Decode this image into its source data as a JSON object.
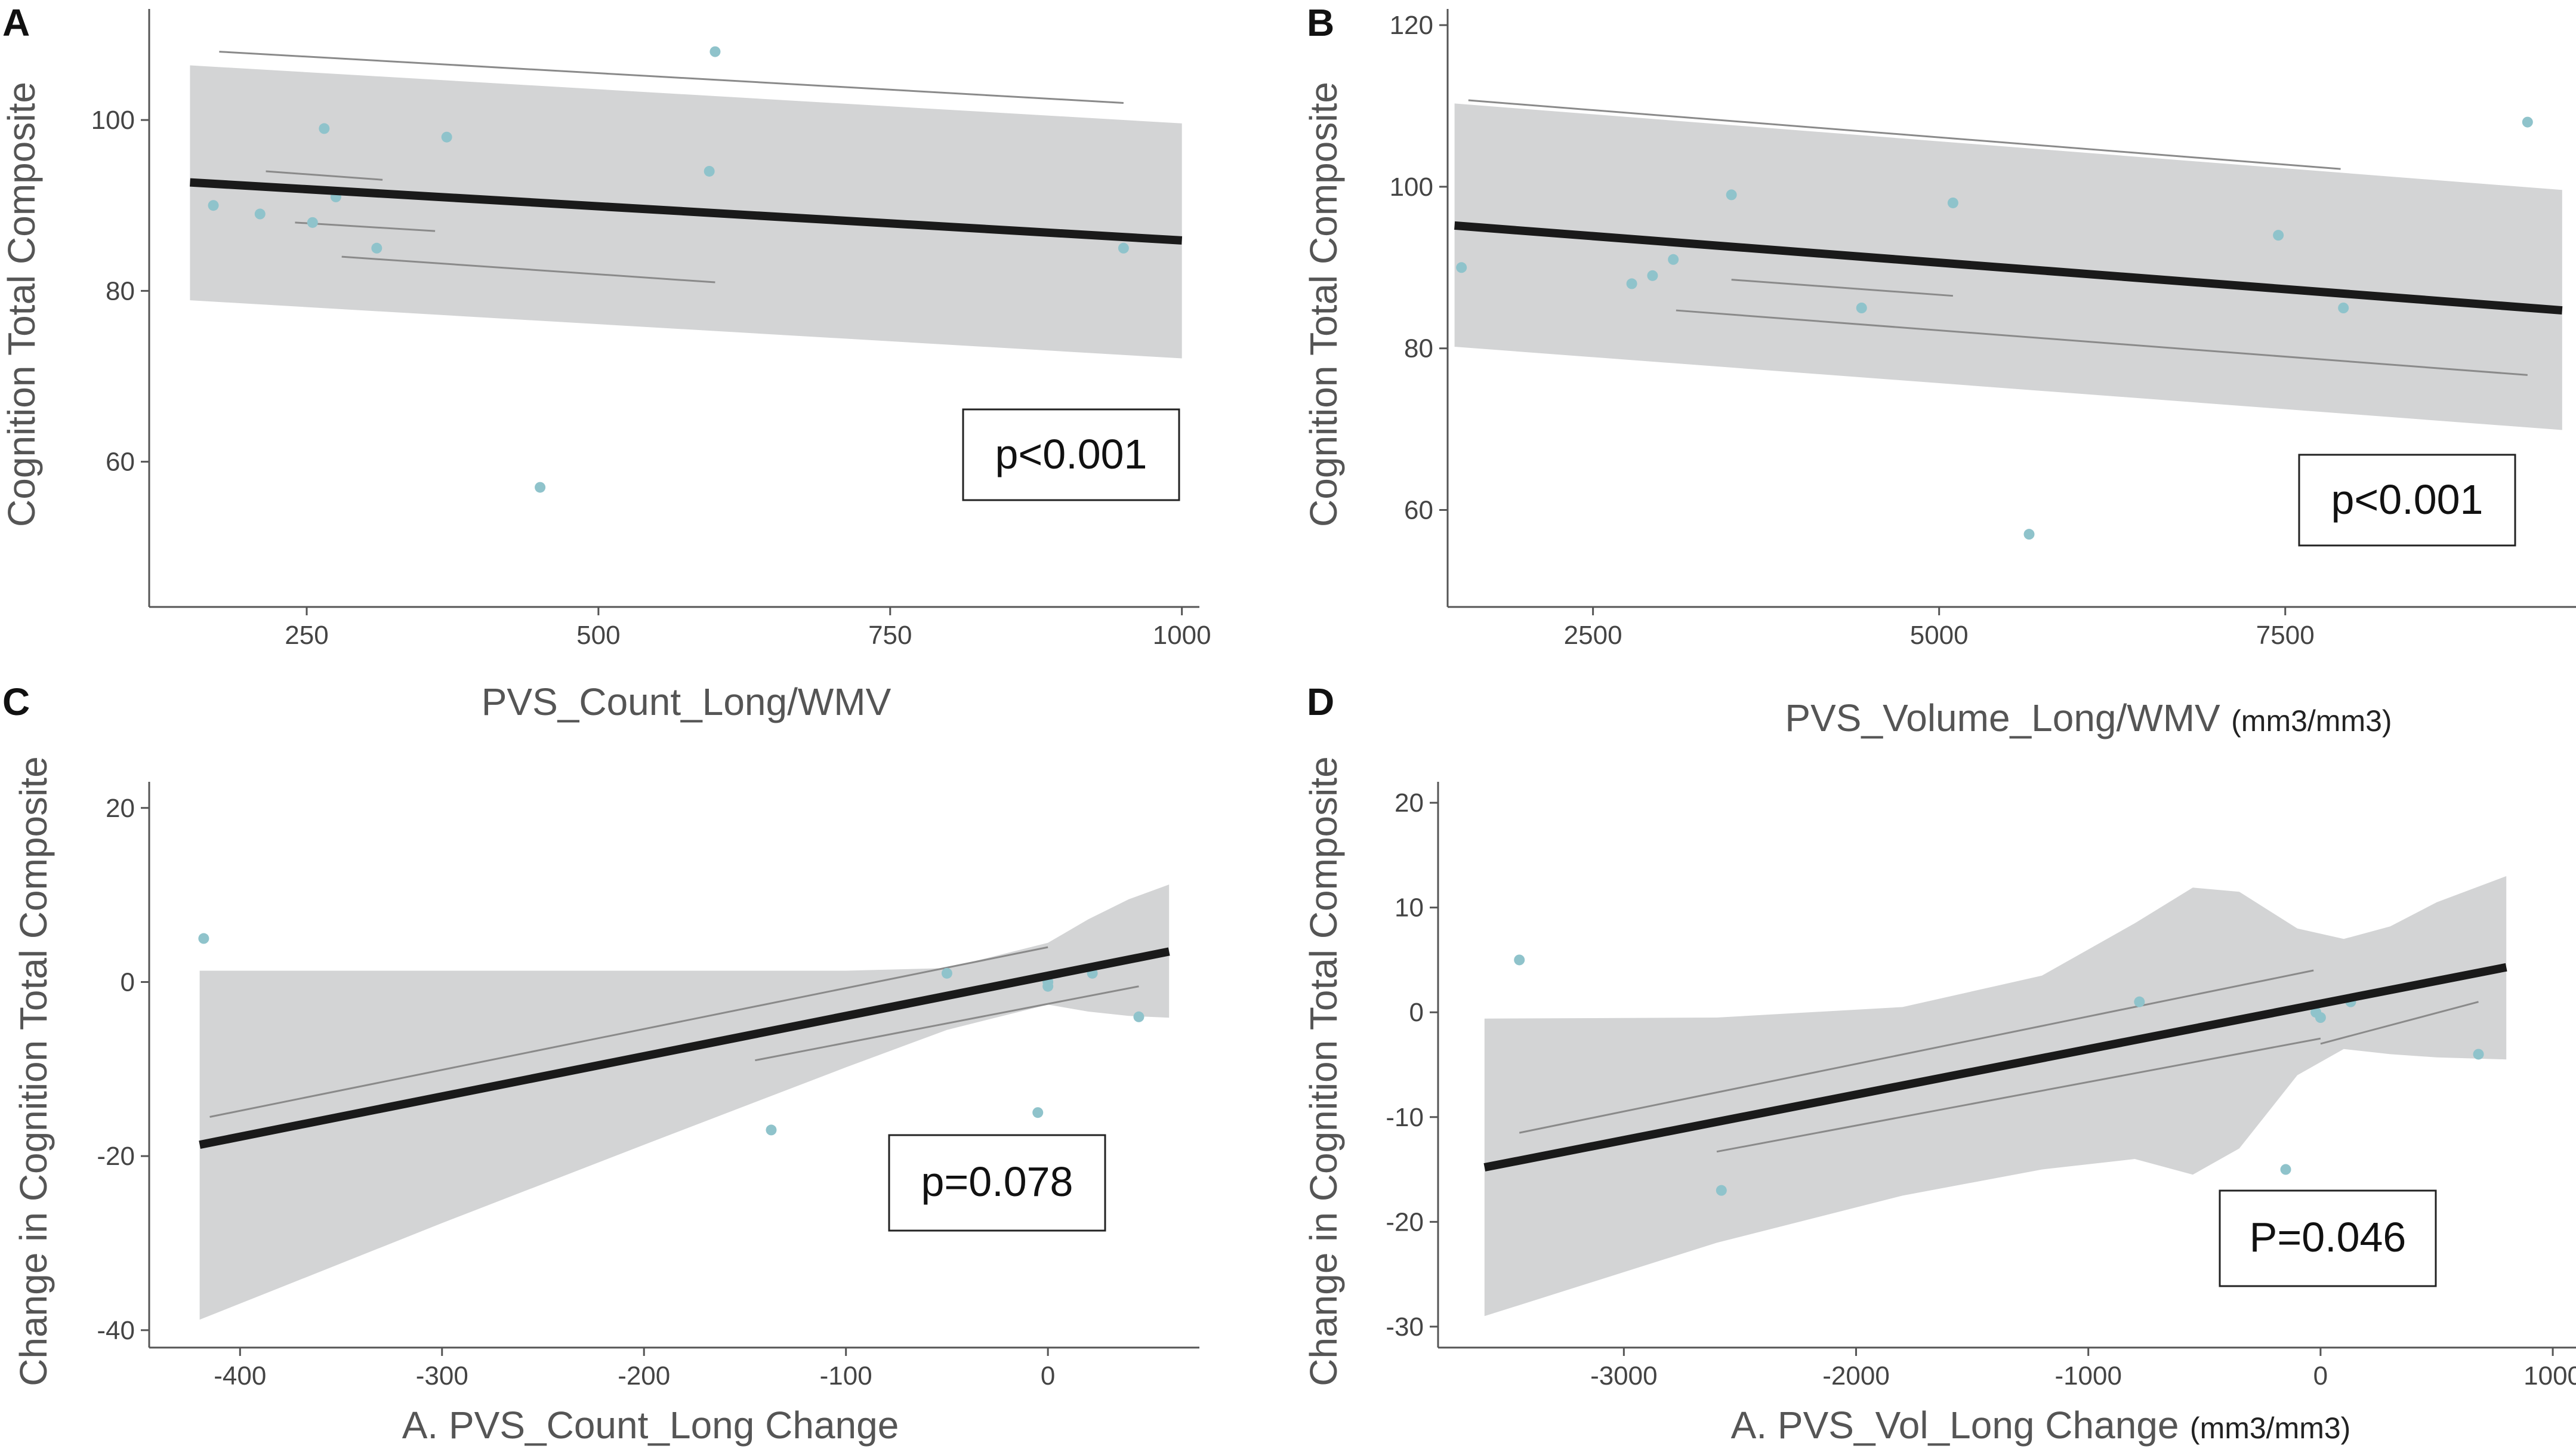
{
  "chart_data": [
    {
      "panel": "A",
      "type": "scatter",
      "xlabel": "PVS_Count_Long/WMV",
      "xunit": "",
      "ylabel": "Cognition Total Composite",
      "xlim": [
        115,
        1015
      ],
      "ylim": [
        43,
        113
      ],
      "xticks": [
        250,
        500,
        750,
        1000
      ],
      "yticks": [
        60,
        80,
        100
      ],
      "points": [
        {
          "x": 170,
          "y": 90
        },
        {
          "x": 210,
          "y": 89
        },
        {
          "x": 255,
          "y": 88
        },
        {
          "x": 265,
          "y": 99
        },
        {
          "x": 275,
          "y": 91
        },
        {
          "x": 310,
          "y": 85
        },
        {
          "x": 370,
          "y": 98
        },
        {
          "x": 450,
          "y": 57
        },
        {
          "x": 595,
          "y": 94
        },
        {
          "x": 600,
          "y": 108
        },
        {
          "x": 950,
          "y": 85
        }
      ],
      "fit": {
        "x": [
          150,
          1000
        ],
        "y": [
          92.7,
          85.9
        ]
      },
      "ci": {
        "x": [
          150,
          1000
        ],
        "upper": [
          106.4,
          99.6
        ],
        "lower": [
          78.9,
          72.1
        ]
      },
      "faint_lines": [
        {
          "x": [
            175,
            950
          ],
          "y": [
            108,
            102
          ]
        },
        {
          "x": [
            215,
            315
          ],
          "y": [
            94,
            93
          ]
        },
        {
          "x": [
            240,
            360
          ],
          "y": [
            88,
            87
          ]
        },
        {
          "x": [
            280,
            600
          ],
          "y": [
            84,
            81
          ]
        }
      ],
      "annotation": "p<0.001"
    },
    {
      "panel": "B",
      "type": "scatter",
      "xlabel": "PVS_Volume_Long/WMV",
      "xunit": "(mm3/mm3)",
      "ylabel": "Cognition Total Composite",
      "xlim": [
        1450,
        9600
      ],
      "ylim": [
        48,
        122
      ],
      "xticks": [
        2500,
        5000,
        7500
      ],
      "yticks": [
        60,
        80,
        100,
        120
      ],
      "points": [
        {
          "x": 1550,
          "y": 90
        },
        {
          "x": 2780,
          "y": 88
        },
        {
          "x": 2930,
          "y": 89
        },
        {
          "x": 3080,
          "y": 91
        },
        {
          "x": 3500,
          "y": 99
        },
        {
          "x": 4440,
          "y": 85
        },
        {
          "x": 5100,
          "y": 98
        },
        {
          "x": 5650,
          "y": 57
        },
        {
          "x": 7450,
          "y": 94
        },
        {
          "x": 7920,
          "y": 85
        },
        {
          "x": 9250,
          "y": 108
        }
      ],
      "fit": {
        "x": [
          1500,
          9500
        ],
        "y": [
          95.2,
          84.7
        ]
      },
      "ci": {
        "x": [
          1500,
          9500
        ],
        "upper": [
          110.3,
          99.6
        ],
        "lower": [
          80.2,
          69.9
        ]
      },
      "faint_lines": [
        {
          "x": [
            1600,
            7900
          ],
          "y": [
            110.7,
            102.2
          ]
        },
        {
          "x": [
            3500,
            5100
          ],
          "y": [
            88.5,
            86.5
          ]
        },
        {
          "x": [
            3100,
            9250
          ],
          "y": [
            84.7,
            76.7
          ]
        }
      ],
      "annotation": "p<0.001"
    },
    {
      "panel": "C",
      "type": "scatter",
      "xlabel": "A. PVS_Count_Long Change",
      "xunit": "",
      "ylabel": "Change in Cognition Total Composite",
      "xlim": [
        -445,
        75
      ],
      "ylim": [
        -42,
        23
      ],
      "xticks": [
        -400,
        -300,
        -200,
        -100,
        0
      ],
      "yticks": [
        -40,
        -20,
        0,
        20
      ],
      "points": [
        {
          "x": -418,
          "y": 5
        },
        {
          "x": -137,
          "y": -17
        },
        {
          "x": -50,
          "y": 1
        },
        {
          "x": -5,
          "y": -15
        },
        {
          "x": 0,
          "y": 0
        },
        {
          "x": 0,
          "y": -0.5
        },
        {
          "x": 22,
          "y": 1
        },
        {
          "x": 45,
          "y": -4
        }
      ],
      "fit": {
        "x": [
          -420,
          60
        ],
        "y": [
          -18.7,
          3.5
        ]
      },
      "ci": {
        "x": [
          -420,
          -300,
          -200,
          -100,
          -50,
          0,
          20,
          40,
          60
        ],
        "upper": [
          1.3,
          1.3,
          1.3,
          1.3,
          1.6,
          4.5,
          7.2,
          9.5,
          11.2
        ],
        "lower": [
          -38.8,
          -27.7,
          -18.7,
          -9.8,
          -5.5,
          -2.6,
          -3.4,
          -3.9,
          -4.1
        ]
      },
      "faint_lines": [
        {
          "x": [
            -415,
            0
          ],
          "y": [
            -15.5,
            4
          ]
        },
        {
          "x": [
            -145,
            45
          ],
          "y": [
            -9,
            -0.5
          ]
        }
      ],
      "annotation": "p=0.078"
    },
    {
      "panel": "D",
      "type": "scatter",
      "xlabel": "A. PVS_Vol_Long Change",
      "xunit": "(mm3/mm3)",
      "ylabel": "Change in Cognition Total Composite",
      "xlim": [
        -3800,
        1100
      ],
      "ylim": [
        -32,
        22
      ],
      "xticks": [
        -3000,
        -2000,
        -1000,
        0,
        1000
      ],
      "yticks": [
        -30,
        -20,
        -10,
        0,
        10,
        20
      ],
      "points": [
        {
          "x": -3450,
          "y": 5
        },
        {
          "x": -2580,
          "y": -17
        },
        {
          "x": -780,
          "y": 1
        },
        {
          "x": -150,
          "y": -15
        },
        {
          "x": -20,
          "y": 0
        },
        {
          "x": 0,
          "y": -0.5
        },
        {
          "x": 130,
          "y": 1
        },
        {
          "x": 680,
          "y": -4
        }
      ],
      "fit": {
        "x": [
          -3600,
          800
        ],
        "y": [
          -14.8,
          4.3
        ]
      },
      "ci": {
        "x": [
          -3600,
          -2600,
          -1800,
          -1200,
          -800,
          -550,
          -350,
          -100,
          100,
          300,
          500,
          800
        ],
        "upper": [
          -0.6,
          -0.5,
          0.5,
          3.5,
          8.5,
          11.9,
          11.5,
          8,
          7,
          8.2,
          10.5,
          13
        ],
        "lower": [
          -29,
          -22,
          -17.5,
          -15,
          -14,
          -15.5,
          -13,
          -6,
          -3.5,
          -4,
          -4.3,
          -4.5
        ]
      },
      "faint_lines": [
        {
          "x": [
            -3450,
            -30
          ],
          "y": [
            -11.5,
            4
          ]
        },
        {
          "x": [
            -2600,
            0
          ],
          "y": [
            -13.3,
            -2.5
          ]
        },
        {
          "x": [
            0,
            680
          ],
          "y": [
            -3,
            1
          ]
        }
      ],
      "annotation": "P=0.046"
    }
  ]
}
